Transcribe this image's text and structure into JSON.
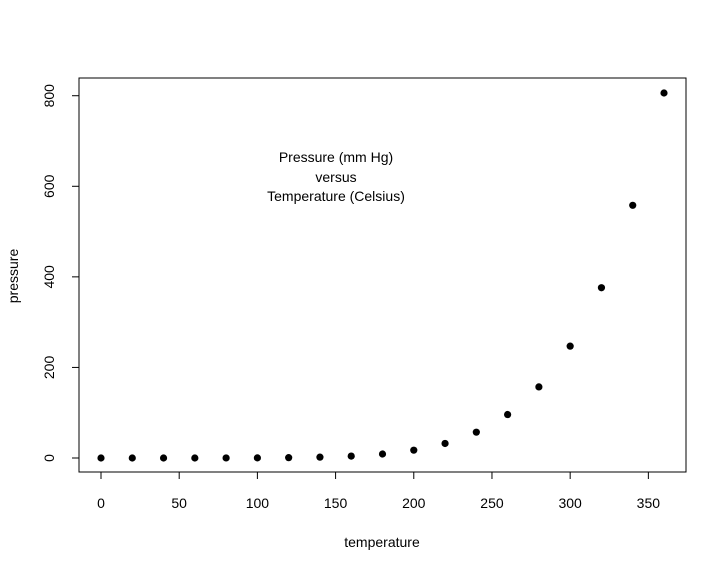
{
  "chart_data": {
    "type": "scatter",
    "xlabel": "temperature",
    "ylabel": "pressure",
    "annotation": [
      "Pressure (mm Hg)",
      "versus",
      "Temperature (Celsius)"
    ],
    "x": [
      0,
      20,
      40,
      60,
      80,
      100,
      120,
      140,
      160,
      180,
      200,
      220,
      240,
      260,
      280,
      300,
      320,
      340,
      360
    ],
    "y": [
      0.0002,
      0.0012,
      0.006,
      0.03,
      0.09,
      0.27,
      0.75,
      1.85,
      4.2,
      8.8,
      17.3,
      32.1,
      57,
      96,
      157,
      247,
      376,
      558,
      806
    ],
    "xlim": [
      0,
      360
    ],
    "ylim": [
      0,
      806
    ],
    "x_ticks": [
      0,
      50,
      100,
      150,
      200,
      250,
      300,
      350
    ],
    "y_ticks": [
      0,
      200,
      400,
      600,
      800
    ],
    "grid": false,
    "marker_color": "#000000"
  }
}
